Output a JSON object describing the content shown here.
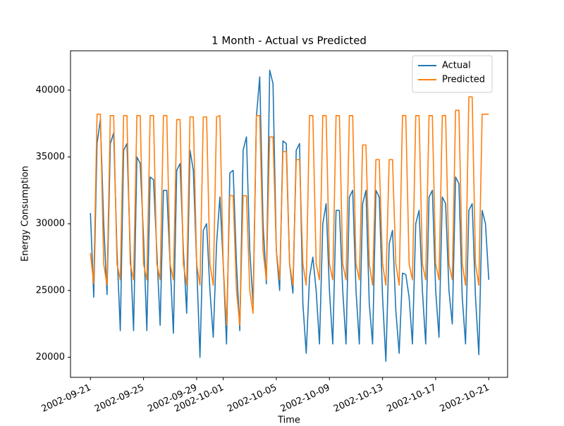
{
  "chart_data": {
    "type": "line",
    "title": "1 Month - Actual vs Predicted",
    "x_label": "Time",
    "y_label": "Energy Consumption",
    "x": [
      "2002-09-21 00:00",
      "2002-09-21 06:00",
      "2002-09-21 12:00",
      "2002-09-21 18:00",
      "2002-09-22 00:00",
      "2002-09-22 06:00",
      "2002-09-22 12:00",
      "2002-09-22 18:00",
      "2002-09-23 00:00",
      "2002-09-23 06:00",
      "2002-09-23 12:00",
      "2002-09-23 18:00",
      "2002-09-24 00:00",
      "2002-09-24 06:00",
      "2002-09-24 12:00",
      "2002-09-24 18:00",
      "2002-09-25 00:00",
      "2002-09-25 06:00",
      "2002-09-25 12:00",
      "2002-09-25 18:00",
      "2002-09-26 00:00",
      "2002-09-26 06:00",
      "2002-09-26 12:00",
      "2002-09-26 18:00",
      "2002-09-27 00:00",
      "2002-09-27 06:00",
      "2002-09-27 12:00",
      "2002-09-27 18:00",
      "2002-09-28 00:00",
      "2002-09-28 06:00",
      "2002-09-28 12:00",
      "2002-09-28 18:00",
      "2002-09-29 00:00",
      "2002-09-29 06:00",
      "2002-09-29 12:00",
      "2002-09-29 18:00",
      "2002-09-30 00:00",
      "2002-09-30 06:00",
      "2002-09-30 12:00",
      "2002-09-30 18:00",
      "2002-10-01 00:00",
      "2002-10-01 06:00",
      "2002-10-01 12:00",
      "2002-10-01 18:00",
      "2002-10-02 00:00",
      "2002-10-02 06:00",
      "2002-10-02 12:00",
      "2002-10-02 18:00",
      "2002-10-03 00:00",
      "2002-10-03 06:00",
      "2002-10-03 12:00",
      "2002-10-03 18:00",
      "2002-10-04 00:00",
      "2002-10-04 06:00",
      "2002-10-04 12:00",
      "2002-10-04 18:00",
      "2002-10-05 00:00",
      "2002-10-05 06:00",
      "2002-10-05 12:00",
      "2002-10-05 18:00",
      "2002-10-06 00:00",
      "2002-10-06 06:00",
      "2002-10-06 12:00",
      "2002-10-06 18:00",
      "2002-10-07 00:00",
      "2002-10-07 06:00",
      "2002-10-07 12:00",
      "2002-10-07 18:00",
      "2002-10-08 00:00",
      "2002-10-08 06:00",
      "2002-10-08 12:00",
      "2002-10-08 18:00",
      "2002-10-09 00:00",
      "2002-10-09 06:00",
      "2002-10-09 12:00",
      "2002-10-09 18:00",
      "2002-10-10 00:00",
      "2002-10-10 06:00",
      "2002-10-10 12:00",
      "2002-10-10 18:00",
      "2002-10-11 00:00",
      "2002-10-11 06:00",
      "2002-10-11 12:00",
      "2002-10-11 18:00",
      "2002-10-12 00:00",
      "2002-10-12 06:00",
      "2002-10-12 12:00",
      "2002-10-12 18:00",
      "2002-10-13 00:00",
      "2002-10-13 06:00",
      "2002-10-13 12:00",
      "2002-10-13 18:00",
      "2002-10-14 00:00",
      "2002-10-14 06:00",
      "2002-10-14 12:00",
      "2002-10-14 18:00",
      "2002-10-15 00:00",
      "2002-10-15 06:00",
      "2002-10-15 12:00",
      "2002-10-15 18:00",
      "2002-10-16 00:00",
      "2002-10-16 06:00",
      "2002-10-16 12:00",
      "2002-10-16 18:00",
      "2002-10-17 00:00",
      "2002-10-17 06:00",
      "2002-10-17 12:00",
      "2002-10-17 18:00",
      "2002-10-18 00:00",
      "2002-10-18 06:00",
      "2002-10-18 12:00",
      "2002-10-18 18:00",
      "2002-10-19 00:00",
      "2002-10-19 06:00",
      "2002-10-19 12:00",
      "2002-10-19 18:00",
      "2002-10-20 00:00",
      "2002-10-20 06:00",
      "2002-10-20 12:00",
      "2002-10-20 18:00",
      "2002-10-21 00:00"
    ],
    "series": [
      {
        "name": "Actual",
        "color": "#1f77b4",
        "values": [
          30800,
          24500,
          36000,
          37800,
          30000,
          24700,
          36000,
          36800,
          28000,
          22000,
          35500,
          36000,
          28000,
          22000,
          35000,
          34500,
          29000,
          22000,
          33500,
          33300,
          28000,
          22400,
          32500,
          32500,
          27000,
          21800,
          34000,
          34500,
          28000,
          23300,
          35500,
          34000,
          27000,
          20000,
          29500,
          30000,
          25000,
          21500,
          28500,
          32000,
          27000,
          21000,
          33800,
          34000,
          27000,
          22000,
          35500,
          36500,
          28000,
          24000,
          38000,
          41000,
          30000,
          25500,
          41500,
          40500,
          28000,
          25000,
          36200,
          36000,
          27000,
          24800,
          35500,
          36000,
          24000,
          20300,
          26000,
          27500,
          25000,
          21000,
          30000,
          31500,
          25000,
          21000,
          31000,
          31000,
          25000,
          21000,
          32000,
          32500,
          25000,
          21000,
          31500,
          32500,
          24000,
          21000,
          32500,
          32000,
          24500,
          19700,
          28500,
          29500,
          23500,
          20300,
          26300,
          26200,
          24500,
          21000,
          30000,
          31000,
          25000,
          21000,
          32000,
          32500,
          25000,
          21500,
          32000,
          31500,
          25000,
          22500,
          33500,
          33000,
          24500,
          21000,
          31000,
          31500,
          24500,
          20200,
          31000,
          30000,
          25800
        ]
      },
      {
        "name": "Predicted",
        "color": "#ff7f0e",
        "values": [
          27800,
          25500,
          38200,
          38200,
          27000,
          25400,
          38100,
          38100,
          27000,
          25800,
          38100,
          38100,
          27000,
          25800,
          38100,
          38100,
          27000,
          25800,
          38100,
          38100,
          27000,
          25800,
          38100,
          38100,
          27000,
          25800,
          37800,
          37800,
          27000,
          25400,
          38000,
          38000,
          27000,
          25400,
          38000,
          38000,
          27000,
          25400,
          38000,
          38100,
          27000,
          22400,
          32100,
          32100,
          25000,
          22400,
          32100,
          32100,
          25000,
          23300,
          38100,
          38100,
          28000,
          25800,
          36500,
          36500,
          28000,
          25800,
          35400,
          35400,
          27000,
          25400,
          34800,
          34800,
          27000,
          25400,
          38100,
          38100,
          27000,
          25800,
          38100,
          38100,
          27000,
          25800,
          38100,
          38100,
          27000,
          25800,
          38100,
          38100,
          27000,
          25800,
          35900,
          35900,
          27000,
          25400,
          34800,
          34800,
          27000,
          25400,
          34800,
          34800,
          27000,
          25400,
          38100,
          38100,
          27000,
          25800,
          38100,
          38100,
          27000,
          25800,
          38100,
          38100,
          27000,
          25800,
          38100,
          38100,
          27000,
          25800,
          38500,
          38500,
          27000,
          25400,
          39500,
          39500,
          27000,
          25400,
          38200,
          38200,
          38200
        ]
      }
    ],
    "xlim": [
      "2002-09-19 12:00",
      "2002-10-22 10:00"
    ],
    "xticks": [
      "2002-09-21",
      "2002-09-25",
      "2002-09-29",
      "2002-10-01",
      "2002-10-05",
      "2002-10-09",
      "2002-10-13",
      "2002-10-17",
      "2002-10-21"
    ],
    "ylim": [
      18500,
      42950
    ],
    "yticks": [
      20000,
      25000,
      30000,
      35000,
      40000
    ],
    "legend": "upper right",
    "grid": false
  }
}
